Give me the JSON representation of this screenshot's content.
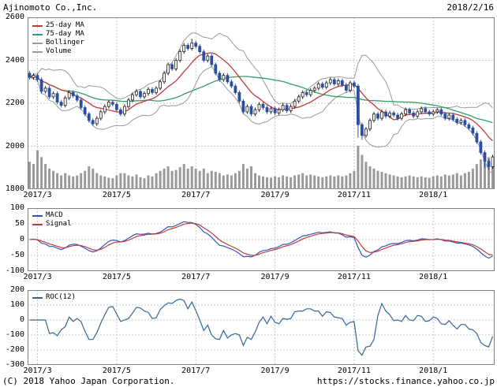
{
  "header": {
    "title": "Ajinomoto Co.,Inc.",
    "date": "2018/2/16"
  },
  "footer": {
    "copyright": "(C) 2018 Yahoo Japan Corporation.",
    "url": "https://stocks.finance.yahoo.co.jp"
  },
  "chart_data": {
    "type": "candlestick",
    "title": "Ajinomoto Co.,Inc. daily chart with Bollinger bands, volume, MACD and ROC",
    "x_axis": {
      "tick_labels": [
        "2017/3",
        "2017/5",
        "2017/7",
        "2017/9",
        "2017/11",
        "2018/1"
      ],
      "tick_indices": [
        2,
        22,
        42,
        62,
        82,
        102
      ]
    },
    "panels": [
      {
        "name": "price",
        "type": "candlestick+volume",
        "ylim": [
          1800,
          2600
        ],
        "yticks": [
          2600,
          2400,
          2200,
          2000,
          1800
        ],
        "legend": [
          {
            "label": "25-day MA",
            "color": "#c03c3c"
          },
          {
            "label": "75-day MA",
            "color": "#2f9e68"
          },
          {
            "label": "Bollinger",
            "color": "#999999"
          },
          {
            "label": "Volume",
            "color": "#9a9a9a"
          }
        ],
        "colors": {
          "up": "#ffffff",
          "down": "#2b4fa0",
          "ma25": "#c03c3c",
          "ma75": "#2f9e68",
          "bollinger": "#999999",
          "volume": "#9a9a9a"
        },
        "overlays": {
          "ma25_window_days": 25,
          "ma75_window_days": 75,
          "bollinger_sigma": 2
        },
        "series": {
          "open": [
            2340,
            2320,
            2330,
            2310,
            2255,
            2270,
            2230,
            2245,
            2205,
            2190,
            2225,
            2250,
            2235,
            2215,
            2180,
            2150,
            2120,
            2105,
            2130,
            2160,
            2185,
            2205,
            2195,
            2170,
            2150,
            2185,
            2215,
            2240,
            2255,
            2230,
            2245,
            2265,
            2250,
            2270,
            2300,
            2340,
            2380,
            2360,
            2400,
            2440,
            2470,
            2455,
            2480,
            2465,
            2440,
            2400,
            2420,
            2380,
            2340,
            2310,
            2330,
            2300,
            2280,
            2250,
            2210,
            2160,
            2185,
            2150,
            2170,
            2195,
            2180,
            2160,
            2175,
            2155,
            2170,
            2190,
            2165,
            2185,
            2210,
            2230,
            2250,
            2240,
            2260,
            2270,
            2290,
            2275,
            2295,
            2310,
            2290,
            2305,
            2285,
            2260,
            2295,
            2280,
            2100,
            2050,
            2080,
            2120,
            2150,
            2130,
            2160,
            2140,
            2155,
            2145,
            2130,
            2150,
            2170,
            2155,
            2140,
            2160,
            2175,
            2160,
            2150,
            2160,
            2170,
            2150,
            2130,
            2145,
            2125,
            2110,
            2120,
            2100,
            2085,
            2060,
            2020,
            1970,
            1930,
            1905
          ],
          "high": [
            2350,
            2340,
            2340,
            2320,
            2280,
            2280,
            2255,
            2255,
            2215,
            2235,
            2260,
            2260,
            2245,
            2225,
            2190,
            2160,
            2130,
            2140,
            2170,
            2195,
            2215,
            2215,
            2205,
            2180,
            2195,
            2225,
            2250,
            2265,
            2265,
            2255,
            2275,
            2275,
            2280,
            2310,
            2350,
            2390,
            2390,
            2410,
            2450,
            2480,
            2480,
            2500,
            2490,
            2475,
            2450,
            2430,
            2430,
            2390,
            2350,
            2340,
            2340,
            2310,
            2290,
            2260,
            2220,
            2195,
            2195,
            2180,
            2205,
            2205,
            2190,
            2185,
            2185,
            2180,
            2200,
            2200,
            2195,
            2220,
            2240,
            2260,
            2260,
            2270,
            2280,
            2300,
            2300,
            2305,
            2320,
            2320,
            2315,
            2315,
            2295,
            2305,
            2305,
            2290,
            2110,
            2090,
            2130,
            2160,
            2160,
            2170,
            2170,
            2165,
            2165,
            2155,
            2160,
            2180,
            2180,
            2165,
            2170,
            2185,
            2185,
            2170,
            2170,
            2180,
            2180,
            2160,
            2155,
            2155,
            2135,
            2130,
            2130,
            2110,
            2095,
            2070,
            2030,
            1980,
            1940,
            1960
          ],
          "low": [
            2310,
            2310,
            2300,
            2245,
            2245,
            2220,
            2220,
            2195,
            2180,
            2180,
            2215,
            2225,
            2205,
            2170,
            2140,
            2110,
            2095,
            2095,
            2120,
            2150,
            2175,
            2185,
            2160,
            2140,
            2140,
            2175,
            2205,
            2230,
            2220,
            2220,
            2235,
            2240,
            2240,
            2260,
            2290,
            2330,
            2350,
            2350,
            2390,
            2430,
            2445,
            2445,
            2455,
            2430,
            2390,
            2390,
            2370,
            2330,
            2300,
            2300,
            2290,
            2270,
            2240,
            2200,
            2150,
            2150,
            2140,
            2140,
            2160,
            2170,
            2150,
            2150,
            2145,
            2145,
            2160,
            2155,
            2155,
            2175,
            2200,
            2220,
            2230,
            2230,
            2250,
            2260,
            2265,
            2265,
            2285,
            2280,
            2280,
            2275,
            2250,
            2250,
            2270,
            2040,
            2030,
            2040,
            2070,
            2110,
            2120,
            2120,
            2130,
            2130,
            2135,
            2120,
            2120,
            2140,
            2145,
            2130,
            2130,
            2150,
            2150,
            2140,
            2140,
            2150,
            2140,
            2120,
            2120,
            2115,
            2100,
            2100,
            2090,
            2075,
            2050,
            2010,
            1960,
            1900,
            1890,
            1895
          ],
          "close": [
            2320,
            2330,
            2310,
            2255,
            2270,
            2230,
            2245,
            2205,
            2190,
            2225,
            2250,
            2235,
            2215,
            2180,
            2150,
            2120,
            2105,
            2130,
            2160,
            2185,
            2205,
            2195,
            2170,
            2150,
            2185,
            2215,
            2240,
            2255,
            2230,
            2245,
            2265,
            2250,
            2270,
            2300,
            2340,
            2380,
            2360,
            2400,
            2440,
            2470,
            2455,
            2480,
            2465,
            2440,
            2400,
            2420,
            2380,
            2340,
            2310,
            2330,
            2300,
            2280,
            2250,
            2210,
            2160,
            2185,
            2150,
            2170,
            2195,
            2180,
            2160,
            2175,
            2155,
            2170,
            2190,
            2165,
            2185,
            2210,
            2230,
            2250,
            2240,
            2260,
            2270,
            2290,
            2275,
            2295,
            2310,
            2290,
            2305,
            2285,
            2260,
            2295,
            2280,
            2100,
            2050,
            2080,
            2120,
            2150,
            2130,
            2160,
            2140,
            2155,
            2145,
            2130,
            2150,
            2170,
            2155,
            2140,
            2160,
            2175,
            2160,
            2150,
            2160,
            2170,
            2150,
            2130,
            2145,
            2125,
            2110,
            2120,
            2100,
            2085,
            2060,
            2020,
            1970,
            1930,
            1905,
            1950
          ],
          "volume": [
            60,
            55,
            85,
            70,
            55,
            45,
            40,
            35,
            30,
            35,
            30,
            28,
            30,
            35,
            40,
            50,
            45,
            35,
            30,
            28,
            25,
            24,
            30,
            35,
            35,
            30,
            28,
            32,
            26,
            24,
            30,
            28,
            35,
            40,
            45,
            50,
            40,
            42,
            48,
            55,
            45,
            50,
            45,
            40,
            45,
            35,
            40,
            38,
            35,
            30,
            32,
            30,
            35,
            40,
            55,
            45,
            50,
            35,
            30,
            28,
            26,
            25,
            28,
            26,
            30,
            28,
            26,
            30,
            32,
            35,
            30,
            32,
            30,
            28,
            26,
            28,
            30,
            28,
            30,
            28,
            30,
            35,
            40,
            95,
            75,
            60,
            50,
            45,
            40,
            38,
            35,
            32,
            30,
            28,
            26,
            28,
            30,
            28,
            26,
            28,
            26,
            25,
            28,
            30,
            28,
            32,
            30,
            32,
            35,
            30,
            35,
            38,
            45,
            55,
            65,
            80,
            70,
            60
          ]
        }
      },
      {
        "name": "macd",
        "type": "line",
        "ylim": [
          -100,
          100
        ],
        "yticks": [
          100,
          50,
          0,
          -50,
          -100
        ],
        "legend": [
          {
            "label": "MACD",
            "color": "#3355bb"
          },
          {
            "label": "Signal",
            "color": "#c03c3c"
          }
        ],
        "colors": {
          "macd": "#3355bb",
          "signal": "#c03c3c"
        },
        "params": {
          "fast_days": 12,
          "slow_days": 26,
          "signal_days": 9,
          "derived_from": "price.close"
        }
      },
      {
        "name": "roc",
        "type": "line",
        "ylim": [
          -300,
          200
        ],
        "yticks": [
          200,
          100,
          0,
          -100,
          -200,
          -300
        ],
        "legend": [
          {
            "label": "ROC(12)",
            "color": "#336699"
          }
        ],
        "colors": {
          "roc": "#336699"
        },
        "params": {
          "period_days": 12,
          "derived_from": "price.close"
        }
      }
    ]
  }
}
